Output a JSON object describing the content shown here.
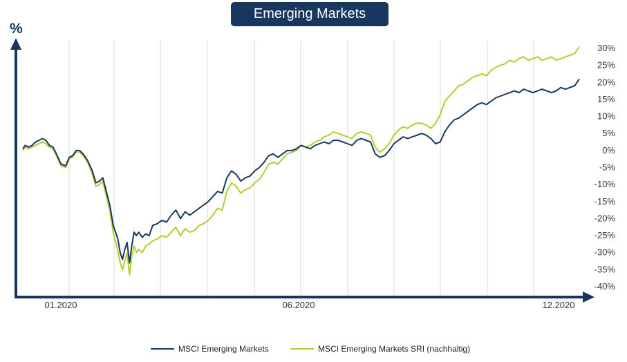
{
  "header": {
    "title": "Emerging Markets"
  },
  "chart_data": {
    "type": "line",
    "title": "Emerging Markets",
    "ylabel": "%",
    "xlabel": "",
    "ylim": [
      -40,
      30
    ],
    "yticks": [
      "30%",
      "25%",
      "20%",
      "15%",
      "10%",
      "5%",
      "0%",
      "-5%",
      "-10%",
      "-15%",
      "-20%",
      "-25%",
      "-30%",
      "-35%",
      "-40%"
    ],
    "xticks": [
      "01.2020",
      "06.2020",
      "12.2020"
    ],
    "grid": "vertical",
    "legend": "bottom",
    "colors": {
      "msci": "#17375e",
      "sri": "#b5cc2e",
      "axis": "#17375e",
      "grid": "#d9d9d9"
    },
    "series": [
      {
        "name": "MSCI Emerging Markets",
        "color": "#17375e",
        "x": [
          0,
          2,
          5,
          8,
          11,
          14,
          17,
          20,
          23,
          26,
          29,
          33,
          37,
          40,
          43,
          46,
          49,
          52,
          56,
          60,
          63,
          66,
          69,
          72,
          75,
          78,
          80,
          82,
          84,
          86,
          88,
          90,
          92,
          94,
          96,
          98,
          100,
          103,
          106,
          109,
          112,
          116,
          120,
          124,
          128,
          132,
          136,
          140,
          144,
          148,
          152,
          156,
          160,
          164,
          168,
          172,
          176,
          180,
          184,
          188,
          192,
          196,
          200,
          204,
          208,
          212,
          216,
          220,
          224,
          228,
          232,
          236,
          240,
          244,
          248,
          252,
          256,
          260,
          264,
          268,
          272,
          276,
          280,
          284,
          288,
          292,
          296,
          300,
          304,
          308,
          312,
          316,
          320,
          324,
          328,
          332,
          336,
          340,
          344,
          348,
          352,
          356,
          360,
          364,
          368,
          372,
          376,
          380,
          384,
          388,
          392,
          396,
          400,
          404,
          408,
          412,
          416,
          420,
          424,
          428,
          432,
          436,
          440,
          444,
          448,
          452,
          456,
          460,
          464,
          468,
          472,
          476,
          480
        ],
        "values": [
          0.5,
          1.5,
          1.0,
          1.5,
          2.5,
          3.0,
          3.5,
          3.0,
          1.5,
          1.0,
          -1.0,
          -4.0,
          -4.5,
          -2.0,
          -1.5,
          0.0,
          0.0,
          -1.0,
          -3.0,
          -6.0,
          -9.5,
          -9.0,
          -8.0,
          -12.0,
          -16.0,
          -22.0,
          -24.0,
          -26.0,
          -30.0,
          -32.0,
          -29.0,
          -27.0,
          -33.0,
          -28.0,
          -24.0,
          -25.0,
          -24.0,
          -25.5,
          -24.5,
          -25.0,
          -22.0,
          -21.5,
          -20.5,
          -21.0,
          -19.0,
          -17.5,
          -20.0,
          -18.0,
          -19.0,
          -18.0,
          -17.0,
          -16.0,
          -15.0,
          -13.5,
          -12.0,
          -12.5,
          -8.0,
          -6.0,
          -7.0,
          -9.0,
          -8.0,
          -7.5,
          -6.0,
          -5.0,
          -3.5,
          -1.5,
          -1.0,
          -2.0,
          -1.0,
          0.0,
          0.0,
          0.5,
          1.5,
          1.0,
          0.5,
          1.5,
          2.0,
          2.5,
          2.0,
          3.0,
          3.0,
          2.5,
          2.0,
          1.5,
          3.0,
          3.5,
          3.0,
          2.5,
          -1.0,
          -2.0,
          -1.5,
          0.0,
          2.0,
          3.0,
          4.0,
          3.5,
          4.0,
          4.5,
          5.0,
          4.5,
          3.5,
          2.0,
          2.5,
          5.5,
          7.5,
          9.0,
          9.5,
          10.5,
          11.5,
          12.5,
          13.5,
          14.0,
          13.5,
          14.5,
          15.5,
          16.0,
          16.5,
          17.0,
          17.5,
          17.0,
          18.0,
          17.5,
          17.0,
          17.5,
          18.0,
          17.5,
          17.0,
          17.5,
          18.5,
          18.0,
          18.5,
          19.0,
          21.0
        ]
      },
      {
        "name": "MSCI Emerging Markets SRI (nachhaltig)",
        "color": "#b5cc2e",
        "x": [
          0,
          2,
          5,
          8,
          11,
          14,
          17,
          20,
          23,
          26,
          29,
          33,
          37,
          40,
          43,
          46,
          49,
          52,
          56,
          60,
          63,
          66,
          69,
          72,
          75,
          78,
          80,
          82,
          84,
          86,
          88,
          90,
          92,
          94,
          96,
          98,
          100,
          103,
          106,
          109,
          112,
          116,
          120,
          124,
          128,
          132,
          136,
          140,
          144,
          148,
          152,
          156,
          160,
          164,
          168,
          172,
          176,
          180,
          184,
          188,
          192,
          196,
          200,
          204,
          208,
          212,
          216,
          220,
          224,
          228,
          232,
          236,
          240,
          244,
          248,
          252,
          256,
          260,
          264,
          268,
          272,
          276,
          280,
          284,
          288,
          292,
          296,
          300,
          304,
          308,
          312,
          316,
          320,
          324,
          328,
          332,
          336,
          340,
          344,
          348,
          352,
          356,
          360,
          364,
          368,
          372,
          376,
          380,
          384,
          388,
          392,
          396,
          400,
          404,
          408,
          412,
          416,
          420,
          424,
          428,
          432,
          436,
          440,
          444,
          448,
          452,
          456,
          460,
          464,
          468,
          472,
          476,
          480
        ],
        "values": [
          0.0,
          1.0,
          0.5,
          1.0,
          1.5,
          2.0,
          2.5,
          2.0,
          1.0,
          0.5,
          -1.5,
          -4.5,
          -5.0,
          -2.5,
          -2.0,
          -0.5,
          -0.5,
          -1.5,
          -3.5,
          -7.0,
          -10.5,
          -10.0,
          -9.0,
          -13.5,
          -17.5,
          -24.0,
          -27.0,
          -29.5,
          -33.0,
          -35.0,
          -32.5,
          -30.0,
          -36.5,
          -31.0,
          -28.0,
          -30.0,
          -29.0,
          -30.0,
          -28.0,
          -27.5,
          -26.5,
          -26.0,
          -25.0,
          -25.5,
          -24.0,
          -22.5,
          -25.0,
          -23.0,
          -24.0,
          -23.5,
          -22.0,
          -21.5,
          -20.5,
          -19.0,
          -17.0,
          -17.5,
          -12.0,
          -9.5,
          -10.5,
          -12.5,
          -11.5,
          -11.0,
          -9.5,
          -8.5,
          -6.5,
          -4.0,
          -3.5,
          -4.0,
          -2.5,
          -1.0,
          -0.5,
          0.0,
          1.5,
          1.0,
          1.5,
          2.5,
          3.0,
          4.0,
          4.5,
          5.5,
          5.0,
          4.5,
          4.0,
          3.5,
          5.0,
          5.5,
          5.0,
          4.5,
          1.0,
          -0.5,
          0.5,
          2.0,
          4.5,
          6.0,
          7.0,
          6.5,
          7.5,
          8.0,
          8.0,
          7.5,
          6.5,
          8.0,
          10.5,
          14.5,
          16.0,
          17.5,
          19.0,
          19.5,
          20.5,
          21.5,
          22.0,
          22.5,
          22.0,
          23.5,
          24.5,
          25.0,
          25.5,
          26.5,
          26.0,
          27.0,
          27.5,
          26.5,
          27.0,
          27.5,
          26.5,
          27.0,
          27.5,
          26.5,
          27.0,
          27.5,
          28.0,
          28.5,
          30.5
        ]
      }
    ]
  }
}
